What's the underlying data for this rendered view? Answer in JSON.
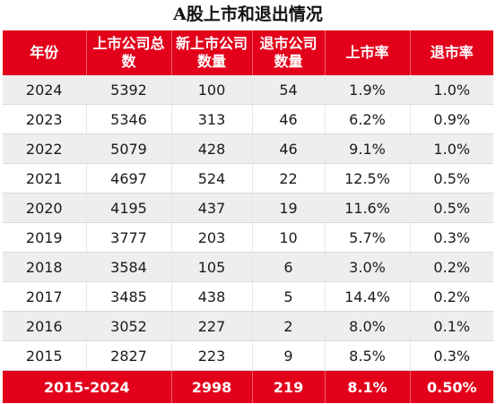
{
  "title": "A股上市和退出情况",
  "chart_data": {
    "type": "table",
    "title": "A股上市和退出情况",
    "columns": [
      "年份",
      "上市公司总数",
      "新上市公司数量",
      "退市公司数量",
      "上市率",
      "退市率"
    ],
    "rows": [
      [
        "2024",
        "5392",
        "100",
        "54",
        "1.9%",
        "1.0%"
      ],
      [
        "2023",
        "5346",
        "313",
        "46",
        "6.2%",
        "0.9%"
      ],
      [
        "2022",
        "5079",
        "428",
        "46",
        "9.1%",
        "1.0%"
      ],
      [
        "2021",
        "4697",
        "524",
        "22",
        "12.5%",
        "0.5%"
      ],
      [
        "2020",
        "4195",
        "437",
        "19",
        "11.6%",
        "0.5%"
      ],
      [
        "2019",
        "3777",
        "203",
        "10",
        "5.7%",
        "0.3%"
      ],
      [
        "2018",
        "3584",
        "105",
        "6",
        "3.0%",
        "0.2%"
      ],
      [
        "2017",
        "3485",
        "438",
        "5",
        "14.4%",
        "0.2%"
      ],
      [
        "2016",
        "3052",
        "227",
        "2",
        "8.0%",
        "0.1%"
      ],
      [
        "2015",
        "2827",
        "223",
        "9",
        "8.5%",
        "0.3%"
      ]
    ],
    "summary": [
      "2015-2024",
      "2998",
      "219",
      "8.1%",
      "0.50%"
    ]
  },
  "colors": {
    "header_bg": "#e3001b",
    "header_text": "#ffffff",
    "stripe_bg": "#eeeeee"
  }
}
